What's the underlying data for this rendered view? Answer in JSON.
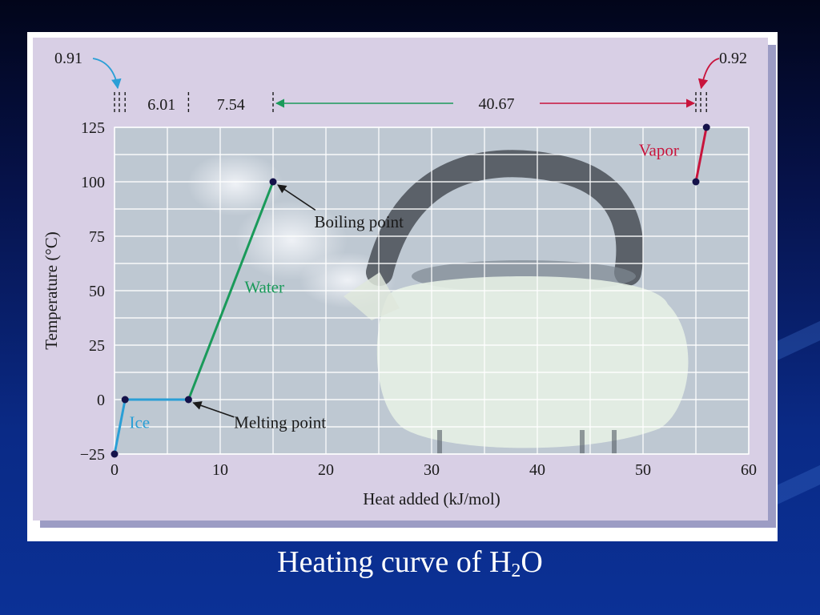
{
  "colors": {
    "ice": "#2a9fd6",
    "water": "#1a9a5a",
    "vapor": "#c8143c",
    "point": "#15124a",
    "grid": "#ffffff",
    "panel": "#d9cfe6",
    "text": "#1a1a1a"
  },
  "caption": {
    "main": "Heating curve of H",
    "sub": "2",
    "end": "O"
  },
  "chart_data": {
    "type": "line",
    "xlabel": "Heat added (kJ/mol)",
    "ylabel": "Temperature (°C)",
    "xlim": [
      0,
      60
    ],
    "ylim": [
      -25,
      125
    ],
    "xticks": [
      0,
      10,
      20,
      30,
      40,
      50,
      60
    ],
    "yticks": [
      -25,
      0,
      25,
      50,
      75,
      100,
      125
    ],
    "grid": true,
    "points": [
      {
        "x": 0,
        "y": -25
      },
      {
        "x": 1.0,
        "y": 0
      },
      {
        "x": 7.0,
        "y": 0
      },
      {
        "x": 15.0,
        "y": 100
      },
      {
        "x": 55.0,
        "y": 100
      },
      {
        "x": 56.0,
        "y": 125
      }
    ],
    "segments": [
      {
        "name": "Ice",
        "from": 0,
        "to": 2,
        "color": "ice"
      },
      {
        "name": "Water",
        "from": 2,
        "to": 3,
        "color": "water"
      },
      {
        "name": "Vapor",
        "from": 4,
        "to": 5,
        "color": "vapor"
      }
    ],
    "phase_labels": [
      {
        "text": "Ice",
        "x": 1.4,
        "y": -13,
        "color": "ice"
      },
      {
        "text": "Water",
        "x": 12.3,
        "y": 49,
        "color": "water"
      },
      {
        "text": "Vapor",
        "x": 49.6,
        "y": 112,
        "color": "vapor"
      }
    ],
    "annotations": [
      {
        "text": "Boiling point",
        "point_index": 3,
        "text_x": 18.9,
        "text_y": 79,
        "arrow_from_x": 19.0,
        "arrow_from_y": 87
      },
      {
        "text": "Melting point",
        "point_index": 2,
        "text_x": 11.3,
        "text_y": -13,
        "arrow_from_x": 11.3,
        "arrow_from_y": -8
      }
    ],
    "enthalpies": [
      {
        "value": "0.91",
        "x_from": 0,
        "x_to": 1.0
      },
      {
        "value": "6.01",
        "x_from": 1.0,
        "x_to": 7.0
      },
      {
        "value": "7.54",
        "x_from": 7.0,
        "x_to": 15.0
      },
      {
        "value": "40.67",
        "x_from": 15.0,
        "x_to": 55.0
      },
      {
        "value": "0.92",
        "x_from": 55.0,
        "x_to": 56.0
      }
    ]
  }
}
